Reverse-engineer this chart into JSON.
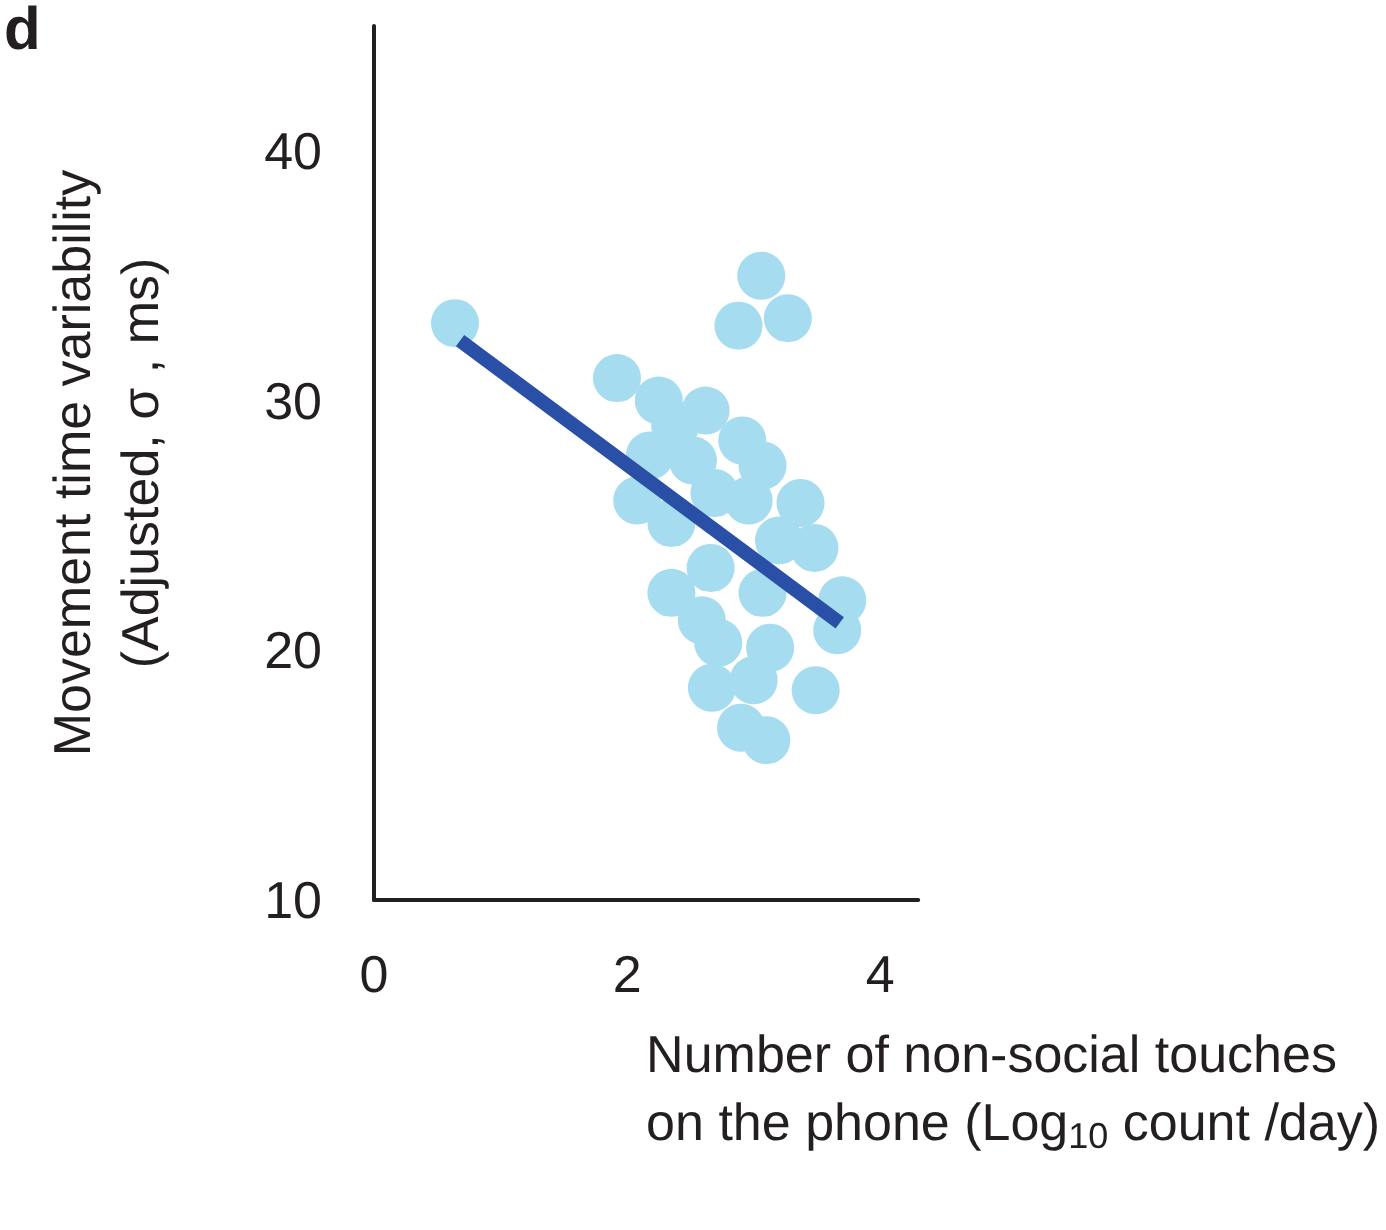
{
  "chart_data": {
    "type": "scatter",
    "xlabel": "Number of non-social touches\non the phone (Log$_{10}$ count /day)",
    "ylabel": "Movement time variability\n(Adjusted, σ , ms)",
    "annotations": [
      "d"
    ],
    "xlim": [
      0,
      4.3
    ],
    "xticks": [
      0,
      2,
      4
    ],
    "ylim": [
      10,
      45
    ],
    "yticks": [
      10,
      20,
      30,
      40
    ],
    "grid": false,
    "marker": "circle",
    "series": [
      {
        "color": "#a6dcf0",
        "x": [
          0.64,
          3.06,
          2.88,
          3.27,
          1.92,
          2.25,
          2.62,
          2.38,
          2.91,
          3.07,
          2.18,
          2.52,
          3.37,
          2.08,
          2.35,
          2.69,
          3.48,
          3.2,
          2.66,
          2.35,
          3.07,
          3.7,
          3.66,
          2.59,
          2.72,
          3.13,
          2.67,
          3.0,
          3.49,
          2.9,
          3.1,
          2.96
        ],
        "values": [
          33.1,
          35.0,
          33.0,
          33.3,
          30.9,
          30.0,
          29.6,
          29.0,
          28.4,
          27.4,
          27.8,
          27.6,
          25.9,
          26.0,
          25.1,
          26.3,
          24.1,
          24.4,
          23.3,
          22.3,
          22.3,
          22.0,
          20.8,
          21.2,
          20.3,
          20.1,
          18.5,
          18.8,
          18.4,
          16.9,
          16.4,
          26.0
        ]
      },
      {
        "type": "line",
        "color": "#2a4fa6",
        "marker": "none",
        "x": [
          0.68,
          3.68
        ],
        "values": [
          32.4,
          21.1
        ]
      }
    ]
  }
}
